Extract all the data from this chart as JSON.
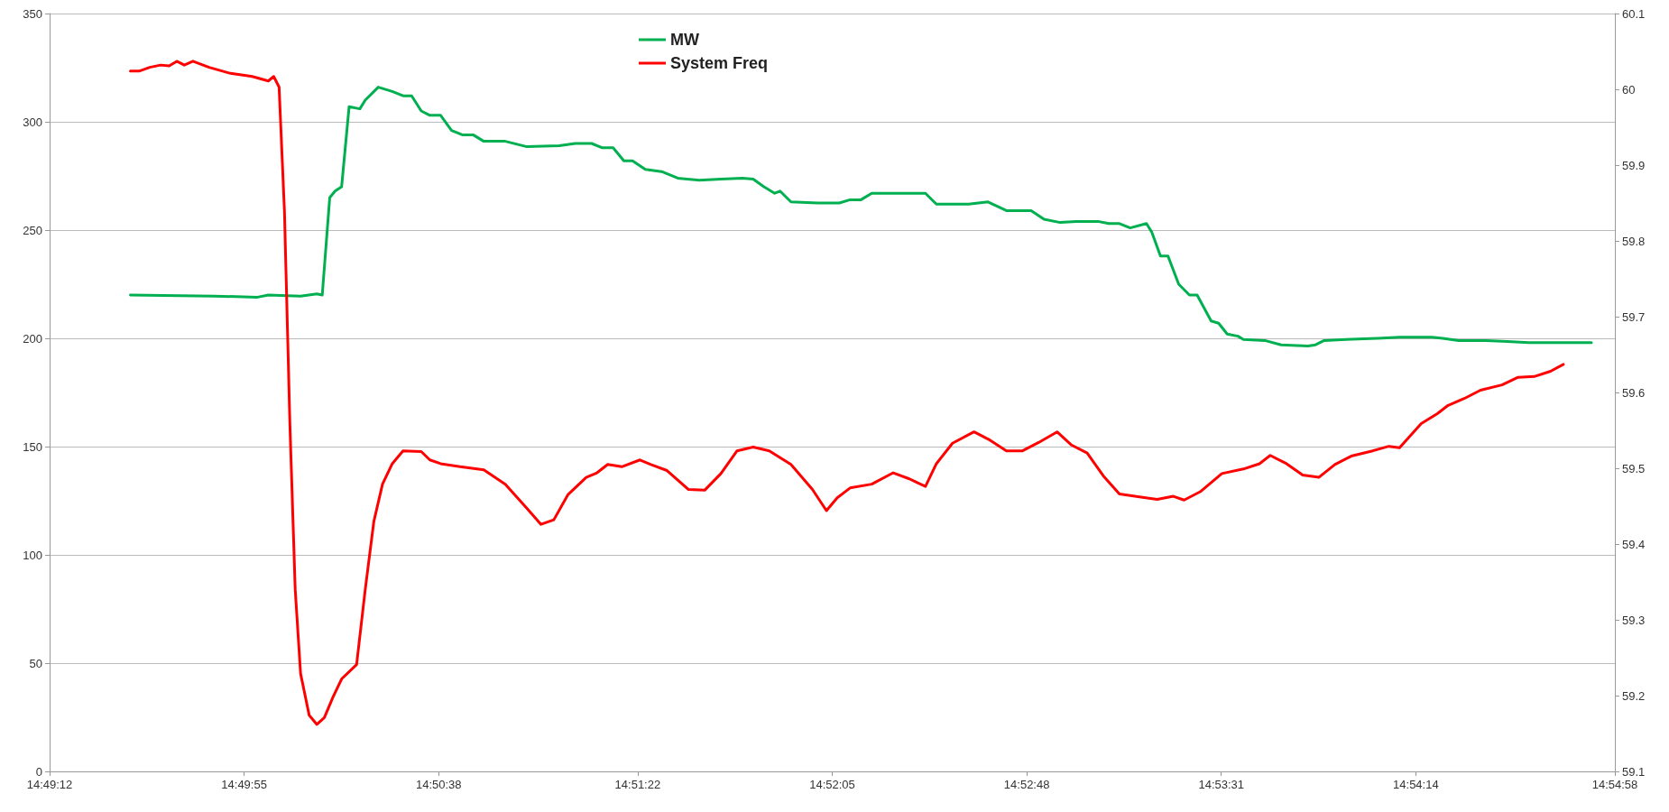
{
  "chart_data": {
    "type": "line",
    "xlim": [
      14.82,
      14.916111
    ],
    "xticks": [
      {
        "value": 14.82,
        "label": "14:49:12"
      },
      {
        "value": 14.831944,
        "label": "14:49:55"
      },
      {
        "value": 14.843889,
        "label": "14:50:38"
      },
      {
        "value": 14.856111,
        "label": "14:51:22"
      },
      {
        "value": 14.868056,
        "label": "14:52:05"
      },
      {
        "value": 14.88,
        "label": "14:52:48"
      },
      {
        "value": 14.891944,
        "label": "14:53:31"
      },
      {
        "value": 14.903889,
        "label": "14:54:14"
      },
      {
        "value": 14.916111,
        "label": "14:54:58"
      }
    ],
    "ylim": [
      0,
      350
    ],
    "yticks": [
      0,
      50,
      100,
      150,
      200,
      250,
      300,
      350
    ],
    "y2lim": [
      59.1,
      60.1
    ],
    "y2ticks": [
      59.1,
      59.2,
      59.3,
      59.4,
      59.5,
      59.6,
      59.7,
      59.8,
      59.9,
      60,
      60.1
    ],
    "grid": "y",
    "legend": "top",
    "marker": "none",
    "line_style": "solid",
    "series": [
      {
        "name": "MW",
        "color": "#00b050",
        "x": [
          14.82496,
          14.83012,
          14.83277,
          14.83343,
          14.83541,
          14.83641,
          14.83674,
          14.8372,
          14.83753,
          14.83793,
          14.83839,
          14.83905,
          14.83938,
          14.84018,
          14.84104,
          14.8417,
          14.84223,
          14.84282,
          14.84335,
          14.84401,
          14.84468,
          14.84534,
          14.846,
          14.84666,
          14.84798,
          14.84931,
          14.85129,
          14.85228,
          14.85328,
          14.85394,
          14.8546,
          14.85526,
          14.85579,
          14.85658,
          14.85758,
          14.85857,
          14.85989,
          14.86122,
          14.86254,
          14.8632,
          14.86386,
          14.86452,
          14.86485,
          14.86552,
          14.86717,
          14.86849,
          14.86915,
          14.86982,
          14.87048,
          14.87246,
          14.87378,
          14.87445,
          14.87643,
          14.87762,
          14.87875,
          14.88027,
          14.88106,
          14.88205,
          14.88305,
          14.88437,
          14.88503,
          14.88569,
          14.88635,
          14.88735,
          14.88768,
          14.88821,
          14.88867,
          14.88933,
          14.88999,
          14.89046,
          14.89132,
          14.89178,
          14.89231,
          14.89297,
          14.8933,
          14.89462,
          14.89562,
          14.89727,
          14.89773,
          14.89826,
          14.89959,
          14.90157,
          14.90289,
          14.90488,
          14.90554,
          14.90653,
          14.90819,
          14.90951,
          14.91083,
          14.91216,
          14.91467
        ],
        "values": [
          220,
          219.5,
          219,
          220,
          219.5,
          220.5,
          220,
          265,
          268,
          270,
          307,
          306,
          310,
          316,
          314,
          312,
          312,
          305,
          303,
          303,
          296,
          294,
          294,
          291,
          291,
          288.5,
          289,
          290,
          290,
          288,
          288,
          282,
          282,
          278,
          277,
          274,
          273,
          273.5,
          274,
          273.5,
          270,
          267,
          268,
          263,
          262.5,
          262.5,
          264,
          264,
          267,
          267,
          267,
          262,
          262,
          263,
          259,
          259,
          255,
          253.5,
          254,
          254,
          253,
          253,
          251,
          253,
          249,
          238,
          238,
          225,
          220,
          220,
          208,
          207,
          202,
          201,
          199.5,
          199,
          197,
          196.5,
          197,
          199,
          199.5,
          200,
          200.5,
          200.5,
          200,
          199,
          199,
          198.5,
          198,
          198,
          198
        ]
      },
      {
        "name": "System Freq",
        "color": "#ff0000",
        "axis": "y2",
        "x": [
          14.82496,
          14.82549,
          14.82615,
          14.82681,
          14.82734,
          14.82781,
          14.82827,
          14.8288,
          14.82979,
          14.83111,
          14.83244,
          14.83343,
          14.83376,
          14.83409,
          14.83442,
          14.83475,
          14.83508,
          14.83541,
          14.83594,
          14.83641,
          14.83687,
          14.8374,
          14.83793,
          14.83885,
          14.83938,
          14.83991,
          14.84044,
          14.84104,
          14.8417,
          14.84282,
          14.84335,
          14.84401,
          14.84521,
          14.84666,
          14.84798,
          14.84931,
          14.85017,
          14.85096,
          14.85182,
          14.85295,
          14.85361,
          14.85427,
          14.85513,
          14.85625,
          14.85692,
          14.85791,
          14.85923,
          14.86022,
          14.86122,
          14.86221,
          14.8632,
          14.86419,
          14.86552,
          14.86684,
          14.8677,
          14.86836,
          14.86915,
          14.87048,
          14.8718,
          14.87279,
          14.87378,
          14.87445,
          14.87544,
          14.87676,
          14.87775,
          14.87875,
          14.87974,
          14.88073,
          14.88186,
          14.88272,
          14.88371,
          14.8847,
          14.88569,
          14.88702,
          14.88801,
          14.889,
          14.88966,
          14.89065,
          14.89198,
          14.8933,
          14.89429,
          14.89495,
          14.89595,
          14.89694,
          14.89793,
          14.89892,
          14.89992,
          14.90124,
          14.90223,
          14.90289,
          14.90422,
          14.90521,
          14.90587,
          14.90686,
          14.90786,
          14.90918,
          14.91017,
          14.91116,
          14.91216,
          14.91295
        ],
        "values": [
          60.024,
          60.024,
          60.029,
          60.032,
          60.031,
          60.037,
          60.032,
          60.037,
          60.029,
          60.021,
          60.017,
          60.011,
          60.017,
          60.003,
          59.839,
          59.561,
          59.34,
          59.229,
          59.174,
          59.162,
          59.171,
          59.198,
          59.222,
          59.241,
          59.34,
          59.43,
          59.479,
          59.506,
          59.523,
          59.522,
          59.511,
          59.506,
          59.502,
          59.498,
          59.479,
          59.447,
          59.426,
          59.432,
          59.465,
          59.488,
          59.494,
          59.505,
          59.502,
          59.511,
          59.505,
          59.497,
          59.472,
          59.471,
          59.493,
          59.523,
          59.528,
          59.523,
          59.505,
          59.472,
          59.444,
          59.461,
          59.474,
          59.479,
          59.494,
          59.486,
          59.476,
          59.506,
          59.533,
          59.548,
          59.537,
          59.523,
          59.523,
          59.534,
          59.548,
          59.531,
          59.52,
          59.49,
          59.466,
          59.462,
          59.459,
          59.463,
          59.458,
          59.469,
          59.493,
          59.499,
          59.506,
          59.517,
          59.506,
          59.491,
          59.488,
          59.505,
          59.516,
          59.523,
          59.529,
          59.527,
          59.559,
          59.572,
          59.583,
          59.592,
          59.603,
          59.61,
          59.62,
          59.621,
          59.628,
          59.637
        ]
      }
    ]
  }
}
